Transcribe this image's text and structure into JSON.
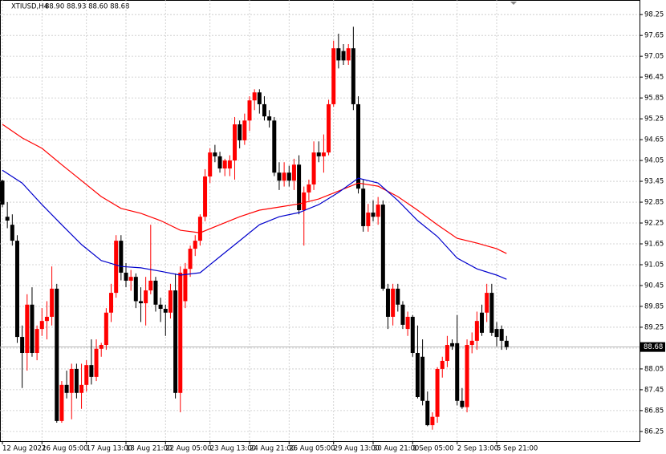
{
  "chart_data": {
    "type": "candlestick",
    "title": "XTIUSD,H4",
    "subtitle": "88.90 88.93 88.60 88.68",
    "categories": [
      "12 Aug 2022",
      null,
      null,
      null,
      null,
      null,
      null,
      null,
      "16 Aug 05:00",
      null,
      null,
      null,
      null,
      null,
      null,
      null,
      null,
      "17 Aug 13:00",
      null,
      null,
      null,
      null,
      null,
      null,
      null,
      "18 Aug 21:00",
      null,
      null,
      null,
      null,
      null,
      null,
      null,
      "22 Aug 05:00",
      null,
      null,
      null,
      null,
      null,
      null,
      null,
      null,
      "23 Aug 13:00",
      null,
      null,
      null,
      null,
      null,
      null,
      null,
      "24 Aug 21:00",
      null,
      null,
      null,
      null,
      null,
      null,
      null,
      "26 Aug 05:00",
      null,
      null,
      null,
      null,
      null,
      null,
      null,
      null,
      "29 Aug 13:00",
      null,
      null,
      null,
      null,
      null,
      null,
      null,
      "30 Aug 21:00",
      null,
      null,
      null,
      null,
      null,
      null,
      null,
      "1 Sep 05:00",
      null,
      null,
      null,
      null,
      null,
      null,
      null,
      null,
      "2 Sep 13:00",
      null,
      null,
      null,
      null,
      null,
      null,
      null,
      "5 Sep 21:00",
      null,
      null
    ],
    "open": [
      93.47,
      92.43,
      92.2,
      91.74,
      88.97,
      88.51,
      89.9,
      88.51,
      89.2,
      89.43,
      89.55,
      90.36,
      86.55,
      87.59,
      87.36,
      88.05,
      87.36,
      87.59,
      88.16,
      87.82,
      88.63,
      88.74,
      89.67,
      90.24,
      91.74,
      90.82,
      90.59,
      90.7,
      90.0,
      89.94,
      90.31,
      90.59,
      89.9,
      89.78,
      89.67,
      90.31,
      87.36,
      90.0,
      90.93,
      91.51,
      91.74,
      92.43,
      93.59,
      94.28,
      94.17,
      93.82,
      93.82,
      94.05,
      95.09,
      94.63,
      95.2,
      95.78,
      96.01,
      95.67,
      95.32,
      95.2,
      93.7,
      93.47,
      93.7,
      93.47,
      93.93,
      92.62,
      93.13,
      93.36,
      94.28,
      94.17,
      94.28,
      95.67,
      97.28,
      97.2,
      96.93,
      97.28,
      95.67,
      93.24,
      92.16,
      92.55,
      92.43,
      92.78,
      90.36,
      89.55,
      90.36,
      89.9,
      89.2,
      89.55,
      88.51,
      88.4,
      87.13,
      86.43,
      86.67,
      88.05,
      88.28,
      88.79,
      88.79,
      87.13,
      86.95,
      88.74,
      88.86,
      89.67,
      89.67,
      90.24,
      89.2,
      89.2,
      88.86
    ],
    "high": [
      93.5,
      92.85,
      92.5,
      91.9,
      89.3,
      90.2,
      90.4,
      89.3,
      89.8,
      90.0,
      91.0,
      90.5,
      87.7,
      88.0,
      88.2,
      88.2,
      88.2,
      88.3,
      88.9,
      88.9,
      88.8,
      89.8,
      90.5,
      91.9,
      91.9,
      91.1,
      90.9,
      90.8,
      90.4,
      90.7,
      92.2,
      90.7,
      90.1,
      89.9,
      90.5,
      90.8,
      91.0,
      91.1,
      91.6,
      91.9,
      92.5,
      93.8,
      94.4,
      94.5,
      94.3,
      94.1,
      94.2,
      95.3,
      95.2,
      95.4,
      95.9,
      96.1,
      96.1,
      95.9,
      95.5,
      95.3,
      94.0,
      94.0,
      93.9,
      94.1,
      94.2,
      93.3,
      93.5,
      94.6,
      94.6,
      94.8,
      95.8,
      97.5,
      97.7,
      97.4,
      97.4,
      97.9,
      95.9,
      93.5,
      92.8,
      92.9,
      93.0,
      92.9,
      90.5,
      90.5,
      90.5,
      90.0,
      89.7,
      89.6,
      89.3,
      88.9,
      87.4,
      86.8,
      88.1,
      88.4,
      89.0,
      88.9,
      89.6,
      87.5,
      88.9,
      89.1,
      89.7,
      89.9,
      90.5,
      90.5,
      89.4,
      89.3,
      89.0
    ],
    "low": [
      92.7,
      92.1,
      91.6,
      88.8,
      87.5,
      88.0,
      88.4,
      88.3,
      89.0,
      88.9,
      89.3,
      86.5,
      86.5,
      87.2,
      86.6,
      87.2,
      86.9,
      87.4,
      87.6,
      87.7,
      88.4,
      88.6,
      89.4,
      90.1,
      90.6,
      90.4,
      90.3,
      89.8,
      89.4,
      89.3,
      90.2,
      89.7,
      89.4,
      89.0,
      89.5,
      87.2,
      86.8,
      89.8,
      90.7,
      91.3,
      91.6,
      92.3,
      93.4,
      94.0,
      93.7,
      93.6,
      93.6,
      93.5,
      94.4,
      94.5,
      94.9,
      95.5,
      95.4,
      95.2,
      95.0,
      93.6,
      93.2,
      93.3,
      93.3,
      93.2,
      92.5,
      91.6,
      92.9,
      93.2,
      94.0,
      93.7,
      94.2,
      95.6,
      96.7,
      96.8,
      96.8,
      95.5,
      93.1,
      92.0,
      92.0,
      92.3,
      92.2,
      90.3,
      89.2,
      89.3,
      89.7,
      89.2,
      89.0,
      88.4,
      87.2,
      87.0,
      86.4,
      86.3,
      86.5,
      87.8,
      88.1,
      88.6,
      87.0,
      86.9,
      86.8,
      88.5,
      88.6,
      89.0,
      89.4,
      89.0,
      88.7,
      88.6,
      88.6
    ],
    "close": [
      92.78,
      92.32,
      91.74,
      88.97,
      88.51,
      89.9,
      88.51,
      89.2,
      89.43,
      89.55,
      90.36,
      86.55,
      87.59,
      87.36,
      88.05,
      87.36,
      87.59,
      88.16,
      87.82,
      88.63,
      88.74,
      89.67,
      90.24,
      91.74,
      90.82,
      90.59,
      90.7,
      90.0,
      89.94,
      90.31,
      90.59,
      89.9,
      89.78,
      89.67,
      90.31,
      87.36,
      90.82,
      90.93,
      91.51,
      91.74,
      92.43,
      93.59,
      94.28,
      94.17,
      93.82,
      94.05,
      94.05,
      95.09,
      94.63,
      95.2,
      95.78,
      96.01,
      95.67,
      95.32,
      95.2,
      93.7,
      93.47,
      93.7,
      93.47,
      93.93,
      92.62,
      93.13,
      93.36,
      94.28,
      94.17,
      94.28,
      95.67,
      97.28,
      96.93,
      96.93,
      97.28,
      95.67,
      93.24,
      92.16,
      92.55,
      92.43,
      92.78,
      90.36,
      89.55,
      90.36,
      89.9,
      89.32,
      89.55,
      88.51,
      87.24,
      87.13,
      86.43,
      86.67,
      88.05,
      88.28,
      88.74,
      88.7,
      87.13,
      86.95,
      88.74,
      88.86,
      89.43,
      89.09,
      90.24,
      89.09,
      88.97,
      88.86,
      88.68
    ],
    "bull_color": "#ff0000",
    "bear_color": "#000000",
    "lines": [
      {
        "color": "#ff0000",
        "x": [
          0,
          4,
          8,
          12,
          16,
          20,
          24,
          28,
          32,
          36,
          40,
          44,
          48,
          52,
          56,
          60,
          64,
          68,
          72,
          76,
          80,
          84,
          88,
          92,
          96,
          100,
          102
        ],
        "values": [
          95.09,
          94.7,
          94.4,
          93.93,
          93.47,
          93.01,
          92.67,
          92.53,
          92.32,
          92.04,
          91.97,
          92.2,
          92.43,
          92.62,
          92.71,
          92.8,
          92.94,
          93.17,
          93.4,
          93.31,
          93.01,
          92.62,
          92.2,
          91.81,
          91.67,
          91.51,
          91.37
        ]
      },
      {
        "color": "#0000cc",
        "x": [
          0,
          4,
          8,
          12,
          16,
          20,
          24,
          28,
          32,
          36,
          40,
          44,
          48,
          52,
          56,
          60,
          64,
          68,
          72,
          76,
          80,
          84,
          88,
          92,
          96,
          100,
          102
        ],
        "values": [
          93.77,
          93.4,
          92.78,
          92.2,
          91.63,
          91.17,
          91.0,
          90.96,
          90.86,
          90.75,
          90.82,
          91.28,
          91.74,
          92.2,
          92.43,
          92.55,
          92.78,
          93.13,
          93.54,
          93.4,
          92.9,
          92.32,
          91.86,
          91.24,
          90.93,
          90.75,
          90.63
        ]
      }
    ],
    "last_price": 88.68,
    "ylim": [
      85.97,
      98.67
    ],
    "yticks": [
      98.25,
      97.65,
      97.05,
      96.45,
      95.85,
      95.25,
      94.65,
      94.05,
      93.45,
      92.85,
      92.25,
      91.65,
      91.05,
      90.45,
      89.85,
      89.25,
      88.65,
      88.05,
      87.45,
      86.85,
      86.25
    ],
    "grid": true
  }
}
